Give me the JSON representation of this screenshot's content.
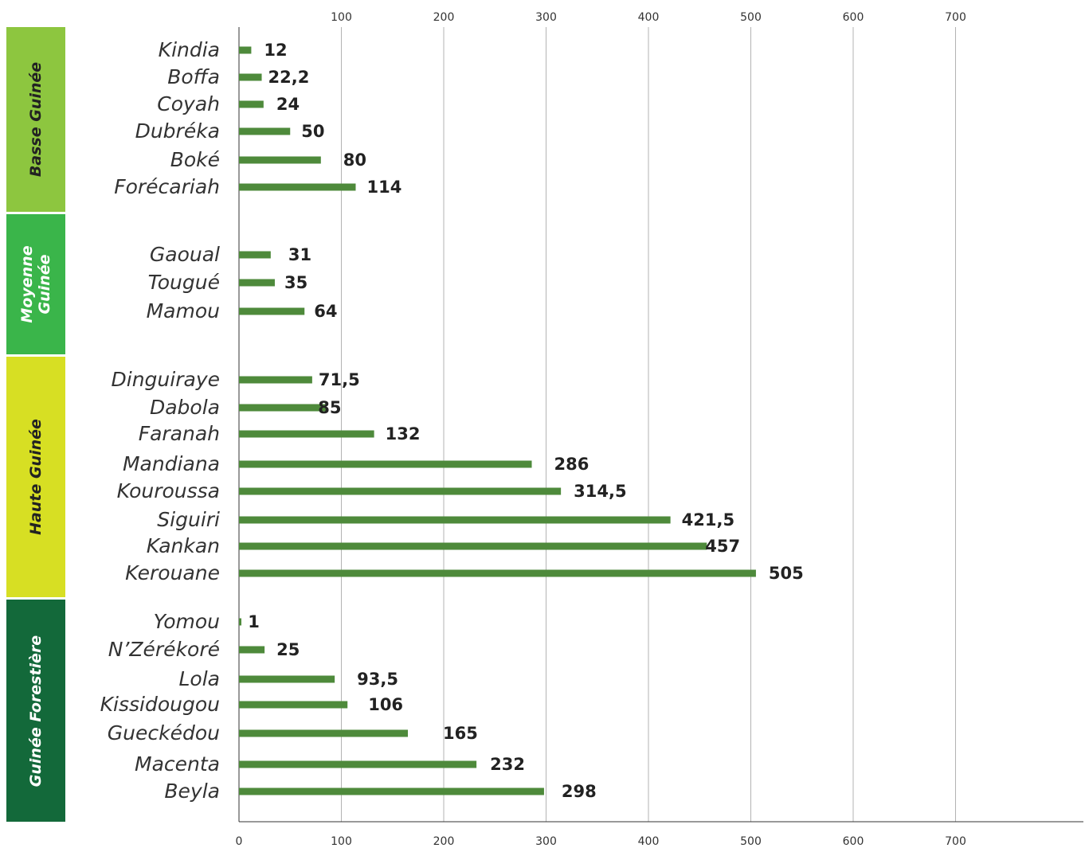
{
  "chart_data": {
    "type": "bar",
    "orientation": "horizontal",
    "xlim": [
      0,
      825
    ],
    "x_ticks": [
      0,
      100,
      200,
      300,
      400,
      500,
      600,
      700
    ],
    "x_tick_labels_top": [
      "100",
      "200",
      "300",
      "400",
      "500",
      "600",
      "700"
    ],
    "x_tick_labels_bottom": [
      "0",
      "100",
      "200",
      "300",
      "400",
      "500",
      "600",
      "700"
    ],
    "grid": true,
    "bar_color": "#4e8a3b",
    "groups": [
      {
        "name": "Basse Guinée",
        "color": "#8dc63f",
        "categories": [
          "Kindia",
          "Boffa",
          "Coyah",
          "Dubréka",
          "Boké",
          "Forécariah"
        ],
        "values": [
          12,
          22.2,
          24,
          50,
          80,
          114
        ],
        "labels": [
          "12",
          "22,2",
          "24",
          "50",
          "80",
          "114"
        ]
      },
      {
        "name": "Moyenne Guinée",
        "color": "#3ab54a",
        "categories": [
          "Gaoual",
          "Tougué",
          "Mamou"
        ],
        "values": [
          31,
          35,
          64
        ],
        "labels": [
          "31",
          "35",
          "64"
        ]
      },
      {
        "name": "Haute Guinée",
        "color": "#d7df23",
        "categories": [
          "Dinguiraye",
          "Dabola",
          "Faranah",
          "Mandiana",
          "Kouroussa",
          "Siguiri",
          "Kankan",
          "Kerouane"
        ],
        "values": [
          71.5,
          85,
          132,
          286,
          314.5,
          421.5,
          457,
          505
        ],
        "labels": [
          "71,5",
          "85",
          "132",
          "286",
          "314,5",
          "421,5",
          "457",
          "505"
        ]
      },
      {
        "name": "Guinée Forestière",
        "color": "#13693a",
        "categories": [
          "Yomou",
          "N’Zérékoré",
          "Lola",
          "Kissidougou",
          "Gueckédou",
          "Macenta",
          "Beyla"
        ],
        "values": [
          1,
          25,
          93.5,
          106,
          165,
          232,
          298
        ],
        "labels": [
          "1",
          "25",
          "93,5",
          "106",
          "165",
          "232",
          "298"
        ]
      }
    ]
  }
}
